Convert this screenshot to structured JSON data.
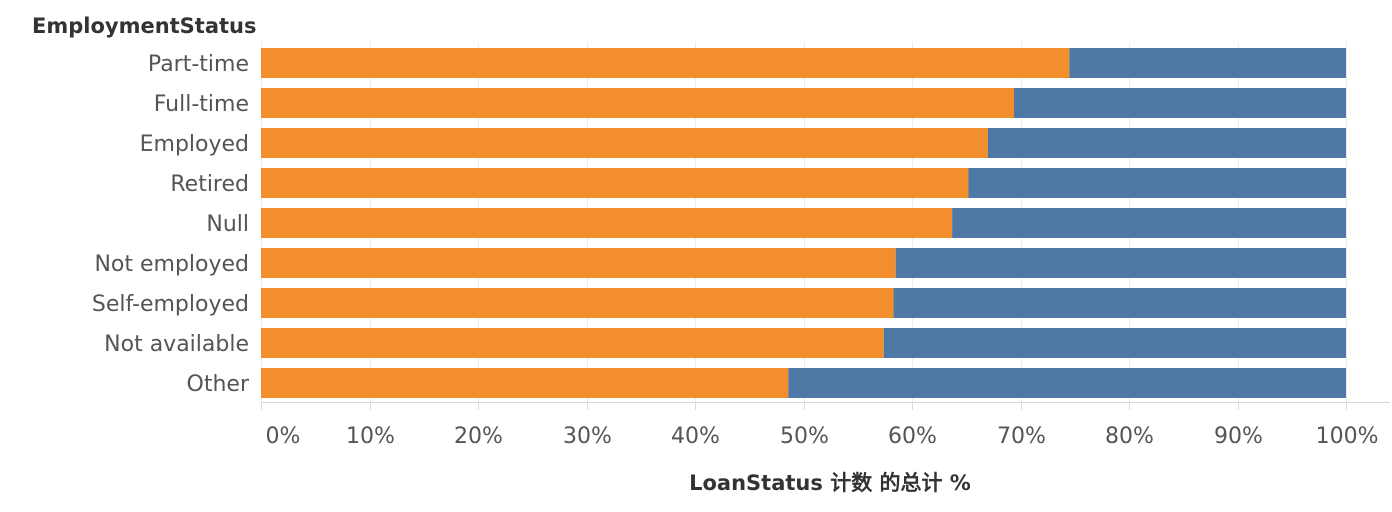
{
  "chart_data": {
    "type": "bar",
    "orientation": "horizontal",
    "stacked": true,
    "normalized_percent": true,
    "row_header": "EmploymentStatus",
    "xlabel": "LoanStatus 计数 的总计 %",
    "categories": [
      "Part-time",
      "Full-time",
      "Employed",
      "Retired",
      "Null",
      "Not employed",
      "Self-employed",
      "Not available",
      "Other"
    ],
    "series": [
      {
        "color": "#f28e2b",
        "values": [
          74.5,
          69.4,
          67.0,
          65.2,
          63.7,
          58.5,
          58.3,
          57.4,
          48.6
        ]
      },
      {
        "color": "#4e79a7",
        "values": [
          25.5,
          30.6,
          33.0,
          34.8,
          36.3,
          41.5,
          41.7,
          42.6,
          51.4
        ]
      }
    ],
    "xlim": [
      0,
      100
    ],
    "x_ticks": [
      0,
      10,
      20,
      30,
      40,
      50,
      60,
      70,
      80,
      90,
      100
    ],
    "x_tick_labels": [
      "0%",
      "10%",
      "20%",
      "30%",
      "40%",
      "50%",
      "60%",
      "70%",
      "80%",
      "90%",
      "100%"
    ],
    "grid": true,
    "legend": "none"
  }
}
